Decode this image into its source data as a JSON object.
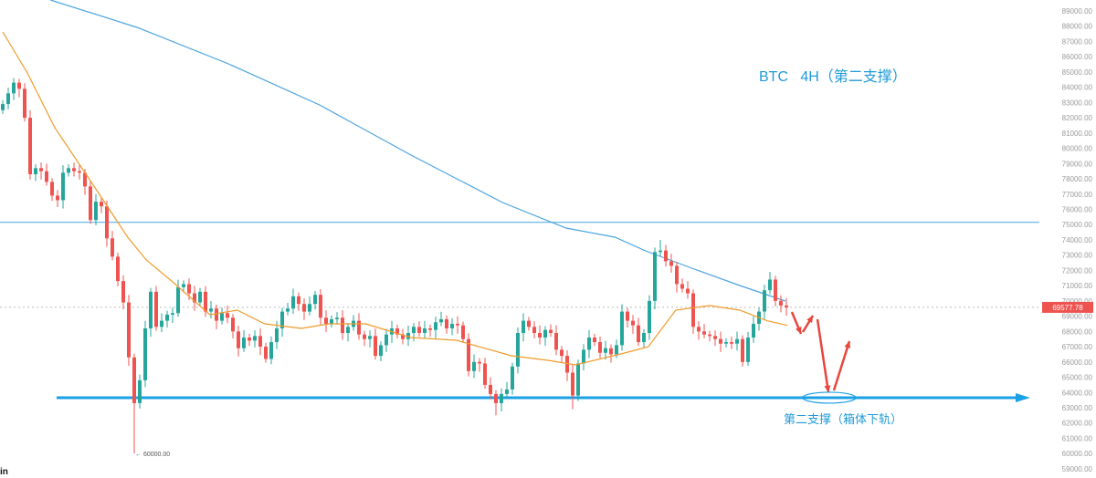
{
  "chart_data": {
    "type": "candlestick",
    "title": "BTC   4H（第二支撑）",
    "annotation": "第二支撑（箱体下轨）",
    "y_axis": {
      "position": "right",
      "range": [
        59000,
        89000
      ],
      "ticks": [
        89000,
        88000,
        87000,
        86000,
        85000,
        84000,
        83000,
        82000,
        81000,
        80000,
        79000,
        78000,
        77000,
        76000,
        75000,
        74000,
        73000,
        72000,
        71000,
        70000,
        69000,
        68000,
        67000,
        66000,
        65000,
        64000,
        63000,
        62000,
        61000,
        60000,
        59000
      ],
      "tick_labels": [
        "89000.00",
        "88000.00",
        "87000.00",
        "86000.00",
        "85000.00",
        "84000.00",
        "83000.00",
        "82000.00",
        "81000.00",
        "80000.00",
        "79000.00",
        "78000.00",
        "77000.00",
        "76000.00",
        "75000.00",
        "74000.00",
        "73000.00",
        "72000.00",
        "71000.00",
        "70000.00",
        "69000.00",
        "68000.00",
        "67000.00",
        "66000.00",
        "65000.00",
        "64000.00",
        "63000.00",
        "62000.00",
        "61000.00",
        "60000.00",
        "59000.00"
      ]
    },
    "last_price": 69577.78,
    "last_price_label": "69577.78",
    "low_marker_label": "← 60000.00",
    "colors": {
      "up": "#26a69a",
      "down": "#ef5350",
      "ma_long": "#4aa3df",
      "ma_short": "#f09a2a",
      "annotation": "#1f9ad8",
      "arrow": "#e8453c",
      "last_price": "#ef5350"
    },
    "first_open": 82500,
    "closes": [
      82900,
      83600,
      84300,
      83900,
      82000,
      78300,
      78700,
      78500,
      77800,
      76900,
      76600,
      78400,
      78700,
      78500,
      78400,
      77500,
      75300,
      76500,
      76200,
      74100,
      72900,
      71300,
      69900,
      66300,
      63300,
      64800,
      68200,
      70600,
      68300,
      68700,
      69100,
      69200,
      70900,
      71100,
      70500,
      69900,
      70600,
      69300,
      69500,
      68700,
      69200,
      68900,
      68000,
      66900,
      67600,
      67400,
      67700,
      67000,
      66200,
      67300,
      68200,
      69300,
      69500,
      70300,
      69800,
      69300,
      69800,
      70400,
      68900,
      68500,
      68800,
      68900,
      67900,
      68300,
      68700,
      67800,
      67500,
      67700,
      66400,
      67100,
      67800,
      68200,
      67800,
      67500,
      67900,
      68300,
      67900,
      68200,
      68100,
      68600,
      68800,
      68200,
      68500,
      68400,
      67500,
      65400,
      66000,
      65900,
      64500,
      63900,
      63300,
      63900,
      64200,
      65700,
      67900,
      68700,
      68300,
      67900,
      67600,
      68100,
      67900,
      66800,
      66400,
      65300,
      63800,
      65900,
      66800,
      67600,
      67300,
      66600,
      66900,
      66500,
      67100,
      69300,
      68700,
      68400,
      67300,
      67900,
      70000,
      73200,
      73300,
      72600,
      72300,
      71100,
      70800,
      70500,
      68300,
      68000,
      67800,
      67700,
      67500,
      67200,
      67300,
      67200,
      67500,
      66000,
      67600,
      68500,
      69300,
      70700,
      71400,
      70000,
      69700,
      69577.78
    ],
    "extremes": {
      "high": {
        "2": 84600,
        "119": 73500,
        "120": 74000,
        "140": 71900
      },
      "low": {
        "24": 60000,
        "90": 62500,
        "104": 62900,
        "135": 65700
      }
    },
    "ma_long": [
      [
        8.7,
        89717
      ],
      [
        24.5,
        87924
      ],
      [
        41.2,
        85533
      ],
      [
        57.8,
        82843
      ],
      [
        74.5,
        79556
      ],
      [
        91.2,
        76448
      ],
      [
        102.8,
        74775
      ],
      [
        111.7,
        74177
      ],
      [
        117.3,
        73280
      ],
      [
        126.2,
        72085
      ],
      [
        134.5,
        71009
      ],
      [
        142.8,
        69993
      ]
    ],
    "ma_short": [
      [
        0,
        87625
      ],
      [
        4.5,
        84935
      ],
      [
        9.5,
        81349
      ],
      [
        16.2,
        77763
      ],
      [
        19.5,
        75970
      ],
      [
        22.8,
        74177
      ],
      [
        26.2,
        72682
      ],
      [
        31.2,
        71188
      ],
      [
        37.8,
        69096
      ],
      [
        42.8,
        69395
      ],
      [
        47.8,
        68498
      ],
      [
        54.5,
        68199
      ],
      [
        59.5,
        68498
      ],
      [
        66.2,
        68498
      ],
      [
        74.5,
        67601
      ],
      [
        82.8,
        67421
      ],
      [
        92.8,
        66405
      ],
      [
        99.5,
        66106
      ],
      [
        104.5,
        65807
      ],
      [
        112.8,
        66525
      ],
      [
        117.8,
        66997
      ],
      [
        122.8,
        69395
      ],
      [
        129,
        69694
      ],
      [
        134.5,
        69395
      ],
      [
        139.5,
        68697
      ],
      [
        143.2,
        68398
      ]
    ],
    "horizontal_lines": [
      {
        "price": 75150,
        "style": "thin"
      },
      {
        "price": 63660,
        "style": "thick-arrow"
      }
    ]
  }
}
